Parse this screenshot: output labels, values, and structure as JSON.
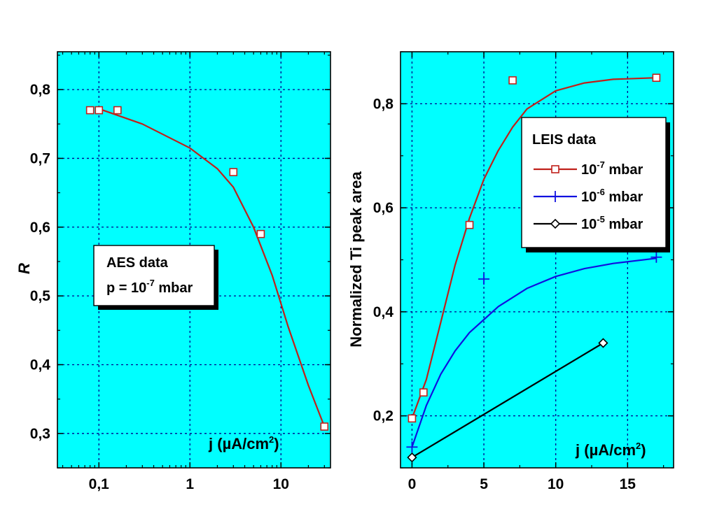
{
  "colors": {
    "background": "#00ffff",
    "grid": "#00008b",
    "red": "#c0201a",
    "blue": "#1010e0",
    "black": "#000000"
  },
  "chart_data": [
    {
      "type": "line",
      "x_scale": "log",
      "xlim": [
        0.035,
        35
      ],
      "ylim": [
        0.25,
        0.855
      ],
      "xticks": [
        0.1,
        1,
        10
      ],
      "xtick_labels": [
        "0,1",
        "1",
        "10"
      ],
      "yticks": [
        0.3,
        0.4,
        0.5,
        0.6,
        0.7,
        0.8
      ],
      "ytick_labels": [
        "0,3",
        "0,4",
        "0,5",
        "0,6",
        "0,7",
        "0,8"
      ],
      "ylabel": "R",
      "xlabel": "j (µA/cm2)",
      "xlabel_main": "j (",
      "xlabel_unit": "µA/cm",
      "xlabel_sup": "2",
      "xlabel_end": ")",
      "grid": true,
      "legend": {
        "placement": "center-left",
        "line1": "AES data",
        "line2_prefix": "p = 10",
        "line2_sup": "-7",
        "line2_suffix": " mbar"
      },
      "series": [
        {
          "marker": "square",
          "color": "red",
          "points": [
            [
              0.08,
              0.77
            ],
            [
              0.1,
              0.77
            ],
            [
              0.16,
              0.77
            ],
            [
              3,
              0.68
            ],
            [
              6,
              0.59
            ],
            [
              30,
              0.31
            ]
          ],
          "curve": [
            [
              0.1,
              0.772
            ],
            [
              0.3,
              0.75
            ],
            [
              1,
              0.715
            ],
            [
              2,
              0.685
            ],
            [
              3,
              0.658
            ],
            [
              5,
              0.6
            ],
            [
              8,
              0.53
            ],
            [
              12,
              0.455
            ],
            [
              20,
              0.37
            ],
            [
              30,
              0.31
            ]
          ]
        }
      ]
    },
    {
      "type": "line",
      "xlim": [
        -0.8,
        18.2
      ],
      "ylim": [
        0.1,
        0.9
      ],
      "xticks": [
        0,
        5,
        10,
        15
      ],
      "xtick_labels": [
        "0",
        "5",
        "10",
        "15"
      ],
      "yticks": [
        0.2,
        0.4,
        0.6,
        0.8
      ],
      "ytick_labels": [
        "0,2",
        "0,4",
        "0,6",
        "0,8"
      ],
      "ylabel": "Normalized Ti peak area",
      "xlabel": "j (µA/cm2)",
      "xlabel_main": "j (",
      "xlabel_unit": "µA/cm",
      "xlabel_sup": "2",
      "xlabel_end": ")",
      "grid": true,
      "legend": {
        "placement": "upper-right",
        "title": "LEIS data",
        "entries": [
          {
            "prefix": "10",
            "sup": "-7",
            "suffix": " mbar",
            "color": "red",
            "marker": "square"
          },
          {
            "prefix": "10",
            "sup": "-6",
            "suffix": " mbar",
            "color": "blue",
            "marker": "plus"
          },
          {
            "prefix": "10",
            "sup": "-5",
            "suffix": " mbar",
            "color": "black",
            "marker": "diamond"
          }
        ]
      },
      "series": [
        {
          "marker": "square",
          "color": "red",
          "points": [
            [
              0,
              0.195
            ],
            [
              0.8,
              0.245
            ],
            [
              4,
              0.567
            ],
            [
              7,
              0.845
            ],
            [
              17,
              0.85
            ]
          ],
          "curve": [
            [
              0,
              0.195
            ],
            [
              1,
              0.27
            ],
            [
              2,
              0.38
            ],
            [
              3,
              0.49
            ],
            [
              4,
              0.58
            ],
            [
              5,
              0.655
            ],
            [
              6,
              0.71
            ],
            [
              7,
              0.755
            ],
            [
              8,
              0.79
            ],
            [
              10,
              0.825
            ],
            [
              12,
              0.84
            ],
            [
              14,
              0.847
            ],
            [
              17,
              0.85
            ]
          ]
        },
        {
          "marker": "plus",
          "color": "blue",
          "points": [
            [
              0,
              0.14
            ],
            [
              5,
              0.463
            ],
            [
              17,
              0.505
            ]
          ],
          "curve": [
            [
              0,
              0.14
            ],
            [
              1,
              0.22
            ],
            [
              2,
              0.28
            ],
            [
              3,
              0.325
            ],
            [
              4,
              0.36
            ],
            [
              5,
              0.385
            ],
            [
              6,
              0.41
            ],
            [
              8,
              0.445
            ],
            [
              10,
              0.468
            ],
            [
              12,
              0.483
            ],
            [
              14,
              0.493
            ],
            [
              17,
              0.503
            ]
          ]
        },
        {
          "marker": "diamond",
          "color": "black",
          "points": [
            [
              0,
              0.12
            ],
            [
              13.3,
              0.34
            ]
          ],
          "curve": [
            [
              0,
              0.12
            ],
            [
              13.3,
              0.34
            ]
          ]
        }
      ]
    }
  ]
}
